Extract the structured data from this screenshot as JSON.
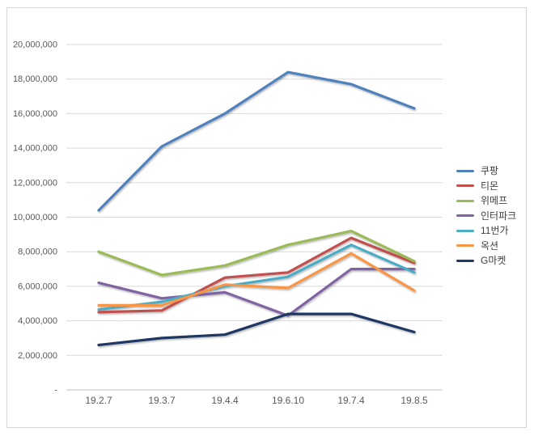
{
  "chart_data": {
    "type": "line",
    "title": "",
    "xlabel": "",
    "ylabel": "",
    "categories": [
      "19.2.7",
      "19.3.7",
      "19.4.4",
      "19.6.10",
      "19.7.4",
      "19.8.5"
    ],
    "series": [
      {
        "name": "쿠팡",
        "color": "#4f81bd",
        "values": [
          10400000,
          14100000,
          16000000,
          18400000,
          17700000,
          16300000
        ]
      },
      {
        "name": "티몬",
        "color": "#c0504d",
        "values": [
          4500000,
          4600000,
          6500000,
          6800000,
          8800000,
          7350000
        ]
      },
      {
        "name": "위메프",
        "color": "#9bbb59",
        "values": [
          8000000,
          6650000,
          7200000,
          8400000,
          9200000,
          7450000
        ]
      },
      {
        "name": "인터파크",
        "color": "#8064a2",
        "values": [
          6200000,
          5300000,
          5650000,
          4300000,
          7000000,
          7000000
        ]
      },
      {
        "name": "11번가",
        "color": "#4bacc6",
        "values": [
          4650000,
          5100000,
          6000000,
          6550000,
          8400000,
          6800000
        ]
      },
      {
        "name": "옥션",
        "color": "#f79646",
        "values": [
          4900000,
          4900000,
          6100000,
          5900000,
          7900000,
          5750000
        ]
      },
      {
        "name": "G마켓",
        "color": "#1f3864",
        "values": [
          2600000,
          3000000,
          3200000,
          4400000,
          4400000,
          3350000
        ]
      }
    ],
    "ylim": [
      0,
      20000000
    ],
    "ytick_step": 2000000,
    "zero_tick_label": "-",
    "grid": true,
    "legend_position": "right"
  },
  "colors": {
    "gridline": "#d9d9d9",
    "axis_line": "#c0c0c0",
    "tick_text": "#595959",
    "legend_text": "#3f3f3f",
    "panel_border": "#d6d6d6",
    "background": "#ffffff"
  }
}
